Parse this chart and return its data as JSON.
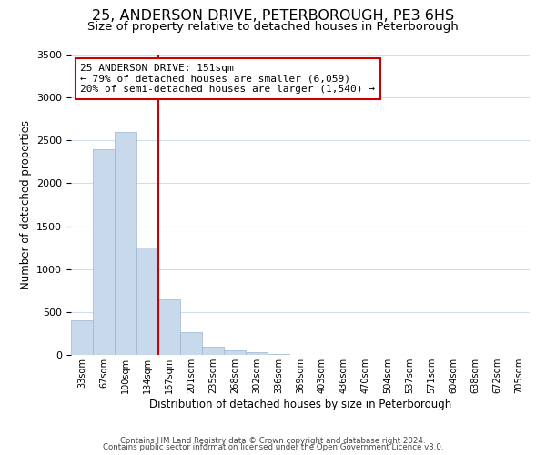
{
  "title": "25, ANDERSON DRIVE, PETERBOROUGH, PE3 6HS",
  "subtitle": "Size of property relative to detached houses in Peterborough",
  "xlabel": "Distribution of detached houses by size in Peterborough",
  "ylabel": "Number of detached properties",
  "bar_labels": [
    "33sqm",
    "67sqm",
    "100sqm",
    "134sqm",
    "167sqm",
    "201sqm",
    "235sqm",
    "268sqm",
    "302sqm",
    "336sqm",
    "369sqm",
    "403sqm",
    "436sqm",
    "470sqm",
    "504sqm",
    "537sqm",
    "571sqm",
    "604sqm",
    "638sqm",
    "672sqm",
    "705sqm"
  ],
  "bar_values": [
    400,
    2400,
    2600,
    1250,
    650,
    260,
    100,
    55,
    30,
    10,
    5,
    0,
    0,
    0,
    0,
    0,
    0,
    0,
    0,
    0,
    0
  ],
  "bar_color": "#c8d9ec",
  "bar_edge_color": "#9ab5d0",
  "vline_x": 3.5,
  "vline_color": "#cc0000",
  "ylim": [
    0,
    3500
  ],
  "annotation_title": "25 ANDERSON DRIVE: 151sqm",
  "annotation_line1": "← 79% of detached houses are smaller (6,059)",
  "annotation_line2": "20% of semi-detached houses are larger (1,540) →",
  "annotation_box_color": "#ffffff",
  "annotation_box_edge": "#cc0000",
  "footer_line1": "Contains HM Land Registry data © Crown copyright and database right 2024.",
  "footer_line2": "Contains public sector information licensed under the Open Government Licence v3.0.",
  "background_color": "#ffffff",
  "grid_color": "#d0dff0",
  "title_fontsize": 11.5,
  "subtitle_fontsize": 9.5
}
